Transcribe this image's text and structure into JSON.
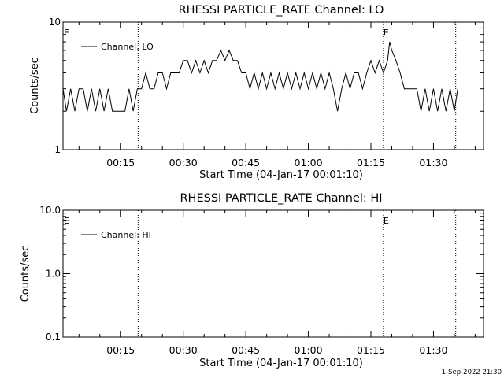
{
  "footer": {
    "timestamp": "1-Sep-2022 21:30"
  },
  "chart_data": [
    {
      "type": "line",
      "title": "RHESSI PARTICLE_RATE Channel: LO",
      "xlabel": "Start Time (04-Jan-17 00:01:10)",
      "ylabel": "Counts/sec",
      "yscale": "log",
      "xlim": [
        "00:01:10",
        "01:42:00"
      ],
      "ylim": [
        1,
        10
      ],
      "x_ticks": [
        "00:15",
        "00:30",
        "00:45",
        "01:00",
        "01:15",
        "01:30"
      ],
      "y_ticks": [
        "1",
        "10"
      ],
      "vlines": [
        "00:19:10",
        "01:18:00",
        "01:35:20"
      ],
      "vline_markers": [
        "E",
        "E"
      ],
      "legend": {
        "position": "top-left",
        "entries": [
          "Channel: LO"
        ]
      },
      "series": [
        {
          "name": "Channel: LO",
          "color": "#000000",
          "points": [
            [
              "00:01:10",
              3
            ],
            [
              "00:02:00",
              2
            ],
            [
              "00:03:00",
              3
            ],
            [
              "00:04:00",
              2
            ],
            [
              "00:05:00",
              3
            ],
            [
              "00:06:00",
              3
            ],
            [
              "00:07:00",
              2
            ],
            [
              "00:08:00",
              3
            ],
            [
              "00:09:00",
              2
            ],
            [
              "00:10:00",
              3
            ],
            [
              "00:11:00",
              2
            ],
            [
              "00:12:00",
              3
            ],
            [
              "00:13:00",
              2
            ],
            [
              "00:14:00",
              2
            ],
            [
              "00:15:00",
              2
            ],
            [
              "00:16:00",
              2
            ],
            [
              "00:17:00",
              3
            ],
            [
              "00:18:00",
              2
            ],
            [
              "00:19:00",
              3
            ],
            [
              "00:20:00",
              3
            ],
            [
              "00:21:00",
              4
            ],
            [
              "00:22:00",
              3
            ],
            [
              "00:23:00",
              3
            ],
            [
              "00:24:00",
              4
            ],
            [
              "00:25:00",
              4
            ],
            [
              "00:26:00",
              3
            ],
            [
              "00:27:00",
              4
            ],
            [
              "00:28:00",
              4
            ],
            [
              "00:29:00",
              4
            ],
            [
              "00:30:00",
              5
            ],
            [
              "00:31:00",
              5
            ],
            [
              "00:32:00",
              4
            ],
            [
              "00:33:00",
              5
            ],
            [
              "00:34:00",
              4
            ],
            [
              "00:35:00",
              5
            ],
            [
              "00:36:00",
              4
            ],
            [
              "00:37:00",
              5
            ],
            [
              "00:38:00",
              5
            ],
            [
              "00:39:00",
              6
            ],
            [
              "00:40:00",
              5
            ],
            [
              "00:41:00",
              6
            ],
            [
              "00:42:00",
              5
            ],
            [
              "00:43:00",
              5
            ],
            [
              "00:44:00",
              4
            ],
            [
              "00:45:00",
              4
            ],
            [
              "00:46:00",
              3
            ],
            [
              "00:47:00",
              4
            ],
            [
              "00:48:00",
              3
            ],
            [
              "00:49:00",
              4
            ],
            [
              "00:50:00",
              3
            ],
            [
              "00:51:00",
              4
            ],
            [
              "00:52:00",
              3
            ],
            [
              "00:53:00",
              4
            ],
            [
              "00:54:00",
              3
            ],
            [
              "00:55:00",
              4
            ],
            [
              "00:56:00",
              3
            ],
            [
              "00:57:00",
              4
            ],
            [
              "00:58:00",
              3
            ],
            [
              "00:59:00",
              4
            ],
            [
              "01:00:00",
              3
            ],
            [
              "01:01:00",
              4
            ],
            [
              "01:02:00",
              3
            ],
            [
              "01:03:00",
              4
            ],
            [
              "01:04:00",
              3
            ],
            [
              "01:05:00",
              4
            ],
            [
              "01:06:00",
              3
            ],
            [
              "01:07:00",
              2
            ],
            [
              "01:08:00",
              3
            ],
            [
              "01:09:00",
              4
            ],
            [
              "01:10:00",
              3
            ],
            [
              "01:11:00",
              4
            ],
            [
              "01:12:00",
              4
            ],
            [
              "01:13:00",
              3
            ],
            [
              "01:14:00",
              4
            ],
            [
              "01:15:00",
              5
            ],
            [
              "01:16:00",
              4
            ],
            [
              "01:17:00",
              5
            ],
            [
              "01:18:00",
              4
            ],
            [
              "01:19:00",
              5
            ],
            [
              "01:19:30",
              7
            ],
            [
              "01:20:00",
              6
            ],
            [
              "01:21:00",
              5
            ],
            [
              "01:22:00",
              4
            ],
            [
              "01:23:00",
              3
            ],
            [
              "01:24:00",
              3
            ],
            [
              "01:25:00",
              3
            ],
            [
              "01:26:00",
              3
            ],
            [
              "01:27:00",
              2
            ],
            [
              "01:28:00",
              3
            ],
            [
              "01:29:00",
              2
            ],
            [
              "01:30:00",
              3
            ],
            [
              "01:31:00",
              2
            ],
            [
              "01:32:00",
              3
            ],
            [
              "01:33:00",
              2
            ],
            [
              "01:34:00",
              3
            ],
            [
              "01:35:00",
              2
            ],
            [
              "01:35:50",
              3
            ]
          ]
        }
      ]
    },
    {
      "type": "line",
      "title": "RHESSI PARTICLE_RATE Channel: HI",
      "xlabel": "Start Time (04-Jan-17 00:01:10)",
      "ylabel": "Counts/sec",
      "yscale": "log",
      "xlim": [
        "00:01:10",
        "01:42:00"
      ],
      "ylim": [
        0.1,
        10.0
      ],
      "x_ticks": [
        "00:15",
        "00:30",
        "00:45",
        "01:00",
        "01:15",
        "01:30"
      ],
      "y_ticks": [
        "0.1",
        "1.0",
        "10.0"
      ],
      "vlines": [
        "00:19:10",
        "01:18:00",
        "01:35:20"
      ],
      "vline_markers": [
        "E",
        "E"
      ],
      "legend": {
        "position": "top-left",
        "entries": [
          "Channel: HI"
        ]
      },
      "series": [
        {
          "name": "Channel: HI",
          "color": "#000000",
          "points": []
        }
      ]
    }
  ]
}
